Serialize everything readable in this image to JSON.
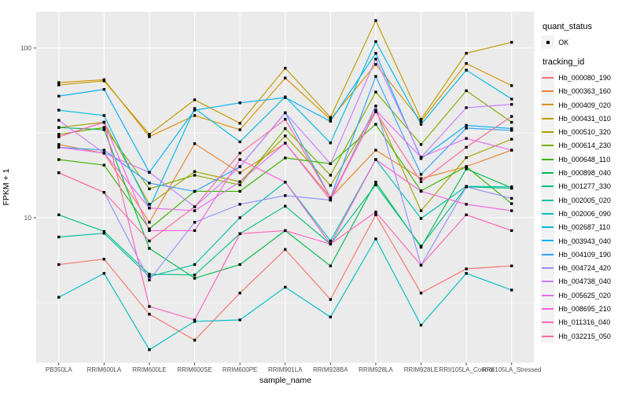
{
  "figure": {
    "panel_bg": "#EBEBEB",
    "grid_color": "#FFFFFF",
    "tick_color": "#333333",
    "axis_text_color": "#4D4D4D",
    "point_color": "#000000",
    "legend_key_bg": "#F2F2F2"
  },
  "legend": {
    "quant_status_title": "quant_status",
    "quant_ok_label": "OK",
    "tracking_id_title": "tracking_id"
  },
  "chart_data": {
    "type": "line",
    "title": "",
    "xlabel": "sample_name",
    "ylabel": "FPKM + 1",
    "y_scale": "log10",
    "y_ticks": [
      10,
      100
    ],
    "y_minor_ticks": [
      3.162,
      31.62
    ],
    "ylim": [
      1.4,
      163
    ],
    "grid": true,
    "legend_position": "right",
    "point_marker": "black square (quant_status OK)",
    "categories": [
      "PB350LA",
      "RRIM600LA",
      "RRIM600LE",
      "RRIM600SE",
      "RRIM600PE",
      "RRIM901LA",
      "RRIM928BA",
      "RRIM928LA",
      "RRIM928LE",
      "RRII105LA_Control",
      "RRII105LA_Stressed"
    ],
    "series": [
      {
        "name": "Hb_000080_190",
        "color": "#F8766D",
        "values": [
          5.3,
          5.7,
          2.7,
          1.9,
          3.6,
          6.5,
          3.3,
          10.4,
          3.6,
          5.0,
          5.2
        ]
      },
      {
        "name": "Hb_000363_160",
        "color": "#EA8331",
        "values": [
          27,
          24,
          9.4,
          27.3,
          18.4,
          27.5,
          13.1,
          25,
          17,
          20,
          25
        ]
      },
      {
        "name": "Hb_000409_020",
        "color": "#D89000",
        "values": [
          62.5,
          65,
          30,
          40,
          33,
          66.5,
          38,
          80,
          37,
          81,
          60
        ]
      },
      {
        "name": "Hb_000431_010",
        "color": "#C09B00",
        "values": [
          60.5,
          64,
          31,
          49.5,
          36,
          76,
          39,
          145,
          38,
          93,
          108
        ]
      },
      {
        "name": "Hb_000510_320",
        "color": "#A3A500",
        "values": [
          34,
          36.5,
          12,
          18.7,
          16.3,
          30.3,
          15.5,
          43,
          11,
          22.6,
          29
        ]
      },
      {
        "name": "Hb_000614_230",
        "color": "#7CAE00",
        "values": [
          31,
          34,
          14.8,
          17.8,
          15.6,
          33.5,
          17.8,
          55,
          27,
          56,
          36.5
        ]
      },
      {
        "name": "Hb_000648_110",
        "color": "#39B600",
        "values": [
          22,
          20.4,
          8.6,
          14.3,
          14.3,
          22.5,
          20.8,
          35.5,
          14.4,
          20,
          12.1
        ]
      },
      {
        "name": "Hb_000898_040",
        "color": "#00BB4E",
        "values": [
          34,
          33,
          6.6,
          4.4,
          5.3,
          8.4,
          5.2,
          16.2,
          6.7,
          19.4,
          15
        ]
      },
      {
        "name": "Hb_001277_330",
        "color": "#00C087",
        "values": [
          10.4,
          8.3,
          4.65,
          4.6,
          8.05,
          11.7,
          7.0,
          15.6,
          6.8,
          15.2,
          14.9
        ]
      },
      {
        "name": "Hb_002005_020",
        "color": "#00C1A3",
        "values": [
          7.7,
          8.1,
          4.5,
          5.3,
          10.0,
          16.2,
          7.3,
          22,
          9.9,
          15.3,
          15.2
        ]
      },
      {
        "name": "Hb_002006_090",
        "color": "#00BFC4",
        "values": [
          3.4,
          4.7,
          1.67,
          2.45,
          2.5,
          3.9,
          2.6,
          7.5,
          2.33,
          4.7,
          3.75
        ]
      },
      {
        "name": "Hb_002687_110",
        "color": "#00BAE0",
        "values": [
          43,
          40,
          11.4,
          44,
          28,
          51.5,
          27.6,
          109,
          35.5,
          74,
          50
        ]
      },
      {
        "name": "Hb_003943_040",
        "color": "#00B0F6",
        "values": [
          52,
          57,
          18.5,
          43,
          47.5,
          51,
          37,
          93,
          22.3,
          35,
          33.5
        ]
      },
      {
        "name": "Hb_004109_190",
        "color": "#35A2FF",
        "values": [
          26,
          25,
          16,
          14.3,
          20,
          41.5,
          13.1,
          68,
          18,
          33.7,
          32.7
        ]
      },
      {
        "name": "Hb_004724_420",
        "color": "#9590FF",
        "values": [
          18.4,
          14.1,
          4.3,
          9.4,
          12,
          13.5,
          12.7,
          45.5,
          5.25,
          15.2,
          13
        ]
      },
      {
        "name": "Hb_004738_040",
        "color": "#C77CFF",
        "values": [
          37.5,
          24,
          18.5,
          11.6,
          20,
          41.5,
          20.8,
          86,
          22.7,
          44.5,
          46.5
        ]
      },
      {
        "name": "Hb_005625_020",
        "color": "#E76BF3",
        "values": [
          26,
          24,
          11.4,
          11,
          16.3,
          27.5,
          12.7,
          43,
          22.7,
          29.3,
          25
        ]
      },
      {
        "name": "Hb_008695_210",
        "color": "#FA62DB",
        "values": [
          30,
          36.5,
          8.4,
          8.4,
          22,
          16.2,
          7.0,
          22,
          14.3,
          12,
          11
        ]
      },
      {
        "name": "Hb_011316_040",
        "color": "#FF62BC",
        "values": [
          30,
          36.5,
          3.0,
          2.5,
          8.05,
          8.4,
          7.0,
          10.8,
          5.25,
          10.4,
          8.4
        ]
      },
      {
        "name": "Hb_032215_050",
        "color": "#FF6A98",
        "values": [
          18.4,
          14.1,
          7.3,
          11.6,
          24,
          38,
          13.1,
          42,
          16.3,
          26,
          39.5
        ]
      }
    ]
  }
}
